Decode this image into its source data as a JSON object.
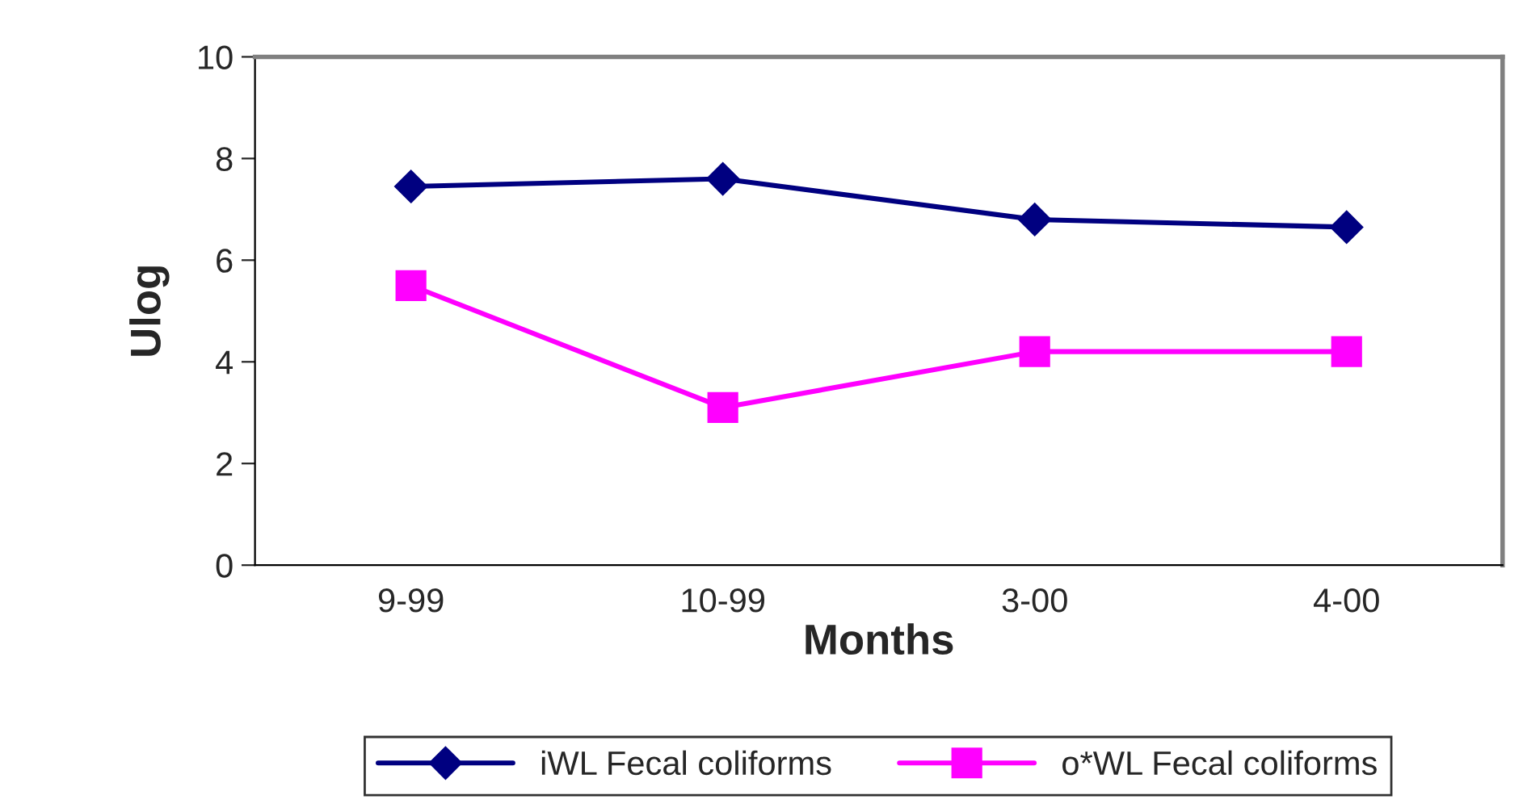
{
  "chart_data": {
    "type": "line",
    "xlabel": "Months",
    "ylabel": "Ulog",
    "categories": [
      "9-99",
      "10-99",
      "3-00",
      "4-00"
    ],
    "series": [
      {
        "name": "iWL Fecal coliforms",
        "color": "#000080",
        "marker": "diamond",
        "values": [
          7.45,
          7.6,
          6.8,
          6.65
        ]
      },
      {
        "name": "o*WL Fecal coliforms",
        "color": "#ff00ff",
        "marker": "square",
        "values": [
          5.5,
          3.1,
          4.2,
          4.2
        ]
      }
    ],
    "ylim": [
      0,
      10
    ],
    "yticks": [
      0,
      2,
      4,
      6,
      8,
      10
    ],
    "grid": false,
    "legend": "bottom",
    "line_style": "solid"
  }
}
